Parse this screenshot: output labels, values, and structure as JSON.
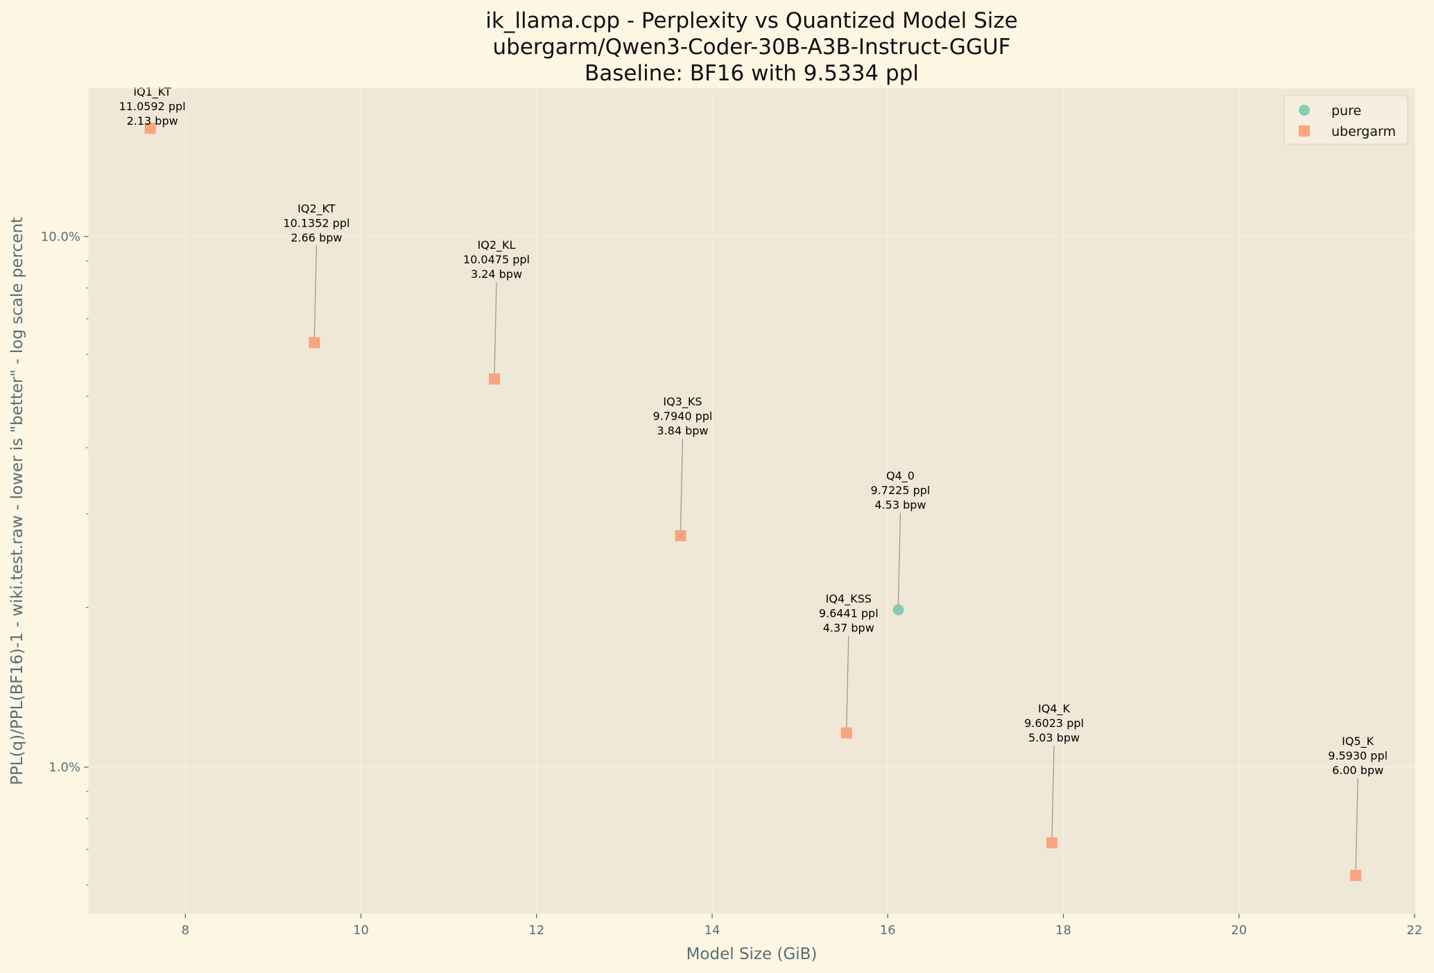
{
  "chart_data": {
    "type": "scatter",
    "title": [
      "ik_llama.cpp - Perplexity vs Quantized Model Size",
      "ubergarm/Qwen3-Coder-30B-A3B-Instruct-GGUF",
      "Baseline: BF16 with 9.5334 ppl"
    ],
    "xlabel": "Model Size (GiB)",
    "ylabel": "PPL(q)/PPL(BF16)-1 - wiki.test.raw - lower is \"better\" - log scale percent",
    "x_scale": "linear",
    "y_scale": "log",
    "xlim": [
      6.9,
      22
    ],
    "ylim": [
      0.53,
      19
    ],
    "x_ticks": [
      8,
      10,
      12,
      14,
      16,
      18,
      20,
      22
    ],
    "y_ticks": [
      1,
      10
    ],
    "y_tick_labels": [
      "1.0%",
      "10.0%"
    ],
    "grid": true,
    "legend": "top-right",
    "series": [
      {
        "name": "pure",
        "marker": "circle",
        "color": "#66c2a5",
        "points": [
          {
            "label": "Q4_0",
            "ppl": "9.7225 ppl",
            "bpw": "4.53 bpw",
            "x": 16.12,
            "y": 1.98
          }
        ]
      },
      {
        "name": "ubergarm",
        "marker": "square",
        "color": "#fc8d62",
        "points": [
          {
            "label": "IQ1_KT",
            "ppl": "11.0592 ppl",
            "bpw": "2.13 bpw",
            "x": 7.6,
            "y": 16.0
          },
          {
            "label": "IQ2_KT",
            "ppl": "10.1352 ppl",
            "bpw": "2.66 bpw",
            "x": 9.47,
            "y": 6.31
          },
          {
            "label": "IQ2_KL",
            "ppl": "10.0475 ppl",
            "bpw": "3.24 bpw",
            "x": 11.52,
            "y": 5.39
          },
          {
            "label": "IQ3_KS",
            "ppl": "9.7940 ppl",
            "bpw": "3.84 bpw",
            "x": 13.64,
            "y": 2.73
          },
          {
            "label": "IQ4_KSS",
            "ppl": "9.6441 ppl",
            "bpw": "4.37 bpw",
            "x": 15.53,
            "y": 1.16
          },
          {
            "label": "IQ4_K",
            "ppl": "9.6023 ppl",
            "bpw": "5.03 bpw",
            "x": 17.87,
            "y": 0.72
          },
          {
            "label": "IQ5_K",
            "ppl": "9.5930 ppl",
            "bpw": "6.00 bpw",
            "x": 21.33,
            "y": 0.625
          }
        ]
      }
    ]
  }
}
